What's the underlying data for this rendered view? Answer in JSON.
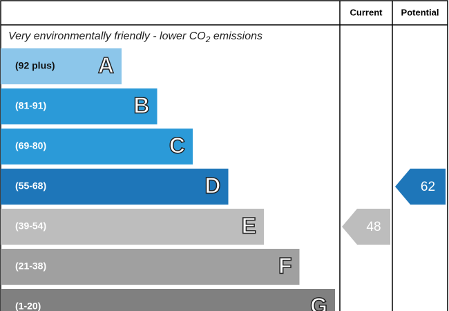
{
  "header": {
    "current": "Current",
    "potential": "Potential"
  },
  "subtitle": {
    "before": "Very environmentally friendly - lower CO",
    "sub": "2",
    "after": " emissions"
  },
  "bands": [
    {
      "label": "(92 plus)",
      "letter": "A",
      "color": "#8cc6ea"
    },
    {
      "label": "(81-91)",
      "letter": "B",
      "color": "#2b9ad8"
    },
    {
      "label": "(69-80)",
      "letter": "C",
      "color": "#2b9ad8"
    },
    {
      "label": "(55-68)",
      "letter": "D",
      "color": "#1e76b9"
    },
    {
      "label": "(39-54)",
      "letter": "E",
      "color": "#bdbdbd"
    },
    {
      "label": "(21-38)",
      "letter": "F",
      "color": "#a0a0a0"
    },
    {
      "label": "(1-20)",
      "letter": "G",
      "color": "#808080"
    }
  ],
  "current": 48,
  "potential": 62
}
